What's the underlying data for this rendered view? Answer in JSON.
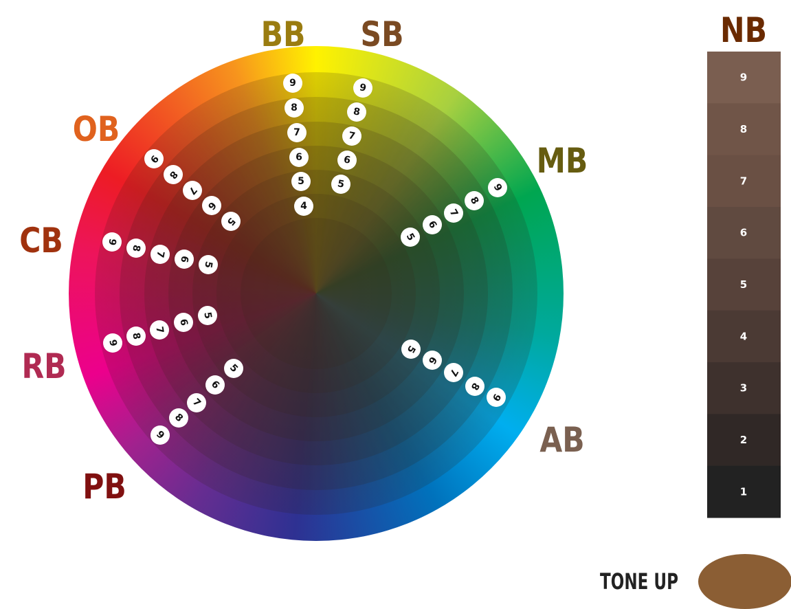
{
  "wheel": {
    "spokes": [
      {
        "label": "BB",
        "numbers": [
          "9",
          "8",
          "7",
          "6",
          "5",
          "4"
        ]
      },
      {
        "label": "SB",
        "numbers": [
          "9",
          "8",
          "7",
          "6",
          "5"
        ]
      },
      {
        "label": "OB",
        "numbers": [
          "9",
          "8",
          "7",
          "6",
          "5"
        ]
      },
      {
        "label": "MB",
        "numbers": [
          "9",
          "8",
          "7",
          "6",
          "5"
        ]
      },
      {
        "label": "CB",
        "numbers": [
          "9",
          "8",
          "7",
          "6",
          "5"
        ]
      },
      {
        "label": "RB",
        "numbers": [
          "9",
          "8",
          "7",
          "6",
          "5"
        ]
      },
      {
        "label": "AB",
        "numbers": [
          "9",
          "8",
          "7",
          "6",
          "5"
        ]
      },
      {
        "label": "PB",
        "numbers": [
          "9",
          "8",
          "7",
          "6",
          "5"
        ]
      }
    ]
  },
  "neutral": {
    "label": "NB",
    "levels": [
      "9",
      "8",
      "7",
      "6",
      "5",
      "4",
      "3",
      "2",
      "1"
    ]
  },
  "tone_up": {
    "label": "TONE UP"
  }
}
